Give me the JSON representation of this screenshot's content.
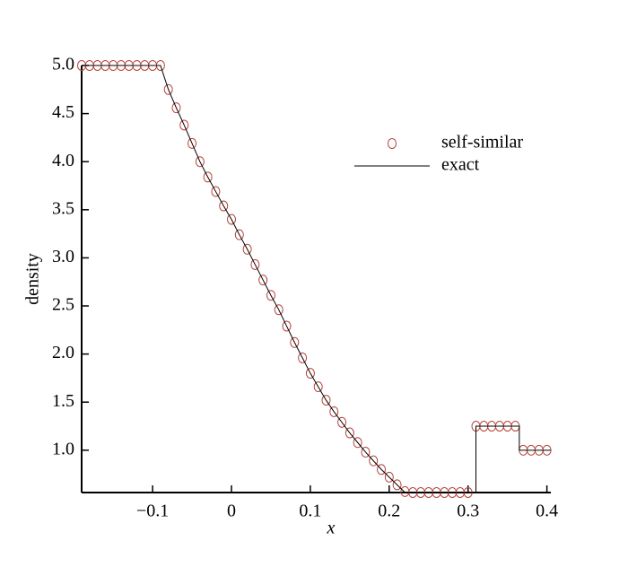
{
  "chart_data": {
    "type": "line",
    "x_label": "x",
    "y_label": "density",
    "xlim": [
      -0.19,
      0.405
    ],
    "ylim": [
      0.56,
      5.0
    ],
    "xticks": [
      {
        "value": -0.1,
        "label": "−0.1"
      },
      0,
      0.1,
      0.2,
      0.3,
      0.4
    ],
    "yticks": [
      {
        "value": 1.0,
        "label": "1.0"
      },
      1.5,
      {
        "value": 2.0,
        "label": "2.0"
      },
      2.5,
      {
        "value": 3.0,
        "label": "3.0"
      },
      3.5,
      {
        "value": 4.0,
        "label": "4.0"
      },
      4.5,
      {
        "value": 5.0,
        "label": "5.0"
      }
    ],
    "legend": "upper right",
    "series": [
      {
        "name": "self-similar",
        "mode": "markers",
        "color": "#b5403a",
        "x": [
          -0.19,
          -0.18,
          -0.17,
          -0.16,
          -0.15,
          -0.14,
          -0.13,
          -0.12,
          -0.11,
          -0.1,
          -0.09,
          -0.08,
          -0.07,
          -0.06,
          -0.05,
          -0.04,
          -0.03,
          -0.02,
          -0.01,
          0,
          0.01,
          0.02,
          0.03,
          0.04,
          0.05,
          0.06,
          0.07,
          0.08,
          0.09,
          0.1,
          0.11,
          0.12,
          0.13,
          0.14,
          0.15,
          0.16,
          0.17,
          0.18,
          0.19,
          0.2,
          0.21,
          0.22,
          0.23,
          0.24,
          0.25,
          0.26,
          0.27,
          0.28,
          0.29,
          0.3,
          0.31,
          0.32,
          0.33,
          0.34,
          0.35,
          0.36,
          0.37,
          0.38,
          0.39,
          0.4
        ],
        "values": [
          5.0,
          5.0,
          5.0,
          5.0,
          5.0,
          5.0,
          5.0,
          5.0,
          5.0,
          5.0,
          5.0,
          4.75,
          4.56,
          4.38,
          4.19,
          4.0,
          3.84,
          3.69,
          3.54,
          3.4,
          3.24,
          3.09,
          2.93,
          2.77,
          2.61,
          2.46,
          2.29,
          2.12,
          1.96,
          1.8,
          1.66,
          1.52,
          1.4,
          1.29,
          1.18,
          1.08,
          0.98,
          0.89,
          0.8,
          0.72,
          0.64,
          0.57,
          0.56,
          0.56,
          0.56,
          0.56,
          0.56,
          0.56,
          0.56,
          0.56,
          1.25,
          1.25,
          1.25,
          1.25,
          1.25,
          1.25,
          1.0,
          1.0,
          1.0,
          1.0
        ]
      },
      {
        "name": "exact",
        "mode": "line",
        "color": "#000000",
        "x": [
          -0.19,
          -0.09,
          -0.08,
          -0.07,
          -0.06,
          -0.05,
          -0.04,
          -0.03,
          -0.02,
          -0.01,
          0,
          0.01,
          0.02,
          0.03,
          0.04,
          0.05,
          0.06,
          0.07,
          0.08,
          0.09,
          0.1,
          0.11,
          0.12,
          0.13,
          0.14,
          0.15,
          0.16,
          0.17,
          0.18,
          0.19,
          0.2,
          0.21,
          0.22,
          0.31,
          0.31,
          0.365,
          0.365,
          0.405
        ],
        "values": [
          5.0,
          5.0,
          4.75,
          4.56,
          4.38,
          4.19,
          4.0,
          3.84,
          3.69,
          3.54,
          3.4,
          3.24,
          3.09,
          2.93,
          2.77,
          2.61,
          2.46,
          2.29,
          2.12,
          1.96,
          1.8,
          1.66,
          1.52,
          1.4,
          1.29,
          1.18,
          1.08,
          0.98,
          0.89,
          0.8,
          0.72,
          0.64,
          0.56,
          0.56,
          1.25,
          1.25,
          1.0,
          1.0
        ]
      }
    ]
  }
}
